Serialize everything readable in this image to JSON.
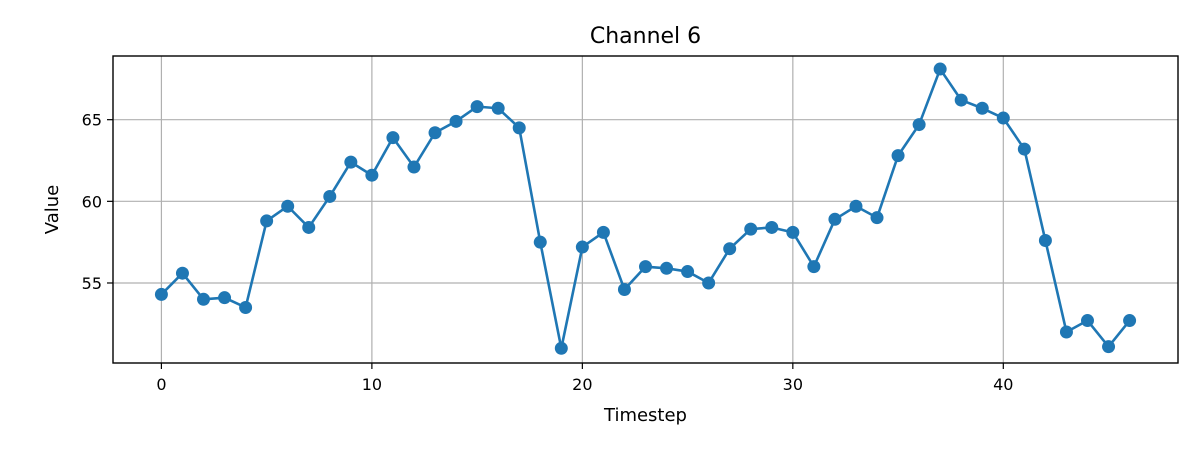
{
  "chart_data": {
    "type": "line",
    "title": "Channel 6",
    "xlabel": "Timestep",
    "ylabel": "Value",
    "xlim": [
      -2.3,
      48.3
    ],
    "ylim": [
      50.1,
      68.9
    ],
    "xticks": [
      0,
      10,
      20,
      30,
      40
    ],
    "yticks": [
      55,
      60,
      65
    ],
    "grid": true,
    "series": [
      {
        "color": "#1f77b4",
        "marker": "circle",
        "x": [
          0,
          1,
          2,
          3,
          4,
          5,
          6,
          7,
          8,
          9,
          10,
          11,
          12,
          13,
          14,
          15,
          16,
          17,
          18,
          19,
          20,
          21,
          22,
          23,
          24,
          25,
          26,
          27,
          28,
          29,
          30,
          31,
          32,
          33,
          34,
          35,
          36,
          37,
          38,
          39,
          40,
          41,
          42,
          43,
          44,
          45,
          46
        ],
        "y": [
          54.3,
          55.6,
          54.0,
          54.1,
          53.5,
          58.8,
          59.7,
          58.4,
          60.3,
          62.4,
          61.6,
          63.9,
          62.1,
          64.2,
          64.9,
          65.8,
          65.7,
          64.5,
          57.5,
          51.0,
          57.2,
          58.1,
          54.6,
          56.0,
          55.9,
          55.7,
          55.0,
          57.1,
          58.3,
          58.4,
          58.1,
          56.0,
          58.9,
          59.7,
          59.0,
          62.8,
          64.7,
          68.1,
          66.2,
          65.7,
          65.1,
          63.2,
          57.6,
          52.0,
          52.7,
          51.1,
          52.7
        ]
      }
    ]
  }
}
